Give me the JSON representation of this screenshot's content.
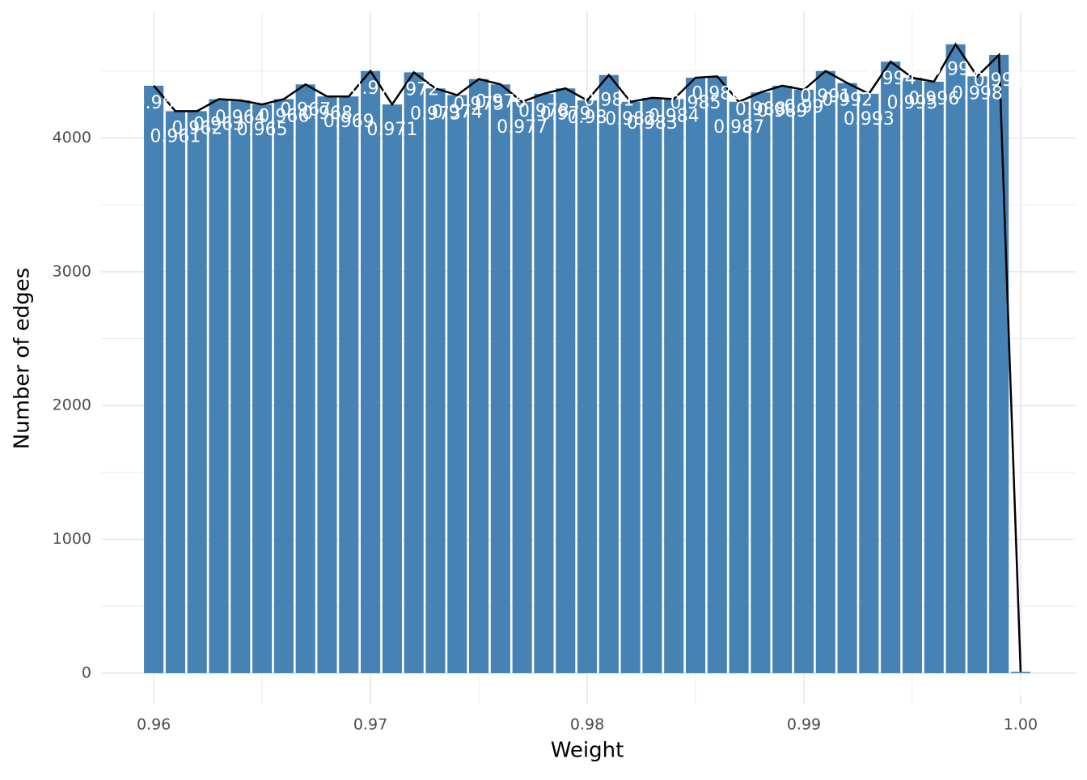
{
  "chart_data": {
    "type": "bar",
    "x_label": "Weight",
    "y_label": "Number of edges",
    "x": [
      0.96,
      0.961,
      0.962,
      0.963,
      0.964,
      0.965,
      0.966,
      0.967,
      0.968,
      0.969,
      0.97,
      0.971,
      0.972,
      0.973,
      0.974,
      0.975,
      0.976,
      0.977,
      0.978,
      0.979,
      0.98,
      0.981,
      0.982,
      0.983,
      0.984,
      0.985,
      0.986,
      0.987,
      0.988,
      0.989,
      0.99,
      0.991,
      0.992,
      0.993,
      0.994,
      0.995,
      0.996,
      0.997,
      0.998,
      0.999,
      1
    ],
    "values": [
      4390,
      4200,
      4200,
      4290,
      4280,
      4250,
      4290,
      4400,
      4310,
      4310,
      4500,
      4250,
      4490,
      4370,
      4320,
      4440,
      4400,
      4270,
      4330,
      4370,
      4280,
      4470,
      4270,
      4300,
      4290,
      4450,
      4460,
      4270,
      4340,
      4390,
      4360,
      4500,
      4410,
      4330,
      4570,
      4450,
      4420,
      4700,
      4460,
      4620,
      10
    ],
    "color": "#4682b4",
    "line_color": "#000000",
    "label_color": "#ffffff",
    "xlim": [
      0.95757,
      1.00254
    ],
    "ylim": [
      -230,
      4940
    ],
    "xticks": [
      0.96,
      0.97,
      0.98,
      0.99,
      {
        "value": 1,
        "label": "1.00"
      }
    ],
    "x_minor_ticks": [
      0.965,
      0.975,
      0.985,
      0.995
    ],
    "yticks": [
      0,
      1000,
      2000,
      3000,
      4000
    ],
    "y_minor_ticks": [
      500,
      1500,
      2500,
      3500,
      4500
    ],
    "grid": true
  }
}
